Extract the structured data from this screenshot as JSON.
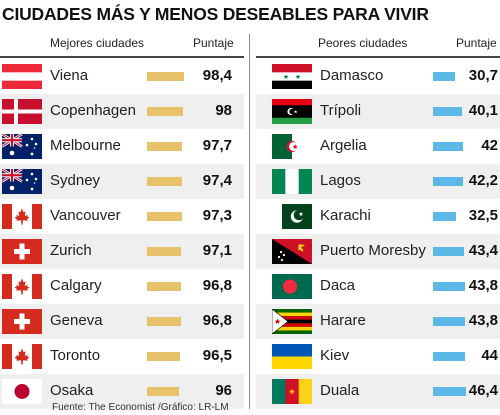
{
  "title": "CIUDADES MÁS Y MENOS DESEABLES PARA VIVIR",
  "source": "Fuente: The Economist /Gráfico: LR-LM",
  "colors": {
    "best_bar": "#e8c26b",
    "worst_bar": "#5cb8e6"
  },
  "chart_data": [
    {
      "type": "bar",
      "header": "Mejores ciudades",
      "value_header": "Puntaje",
      "categories": [
        "Viena",
        "Copenhagen",
        "Melbourne",
        "Sydney",
        "Vancouver",
        "Zurich",
        "Calgary",
        "Geneva",
        "Toronto",
        "Osaka"
      ],
      "values": [
        98.4,
        98,
        97.7,
        97.4,
        97.3,
        97.1,
        96.8,
        96.8,
        96.5,
        96
      ],
      "value_labels": [
        "98,4",
        "98",
        "97,7",
        "97,4",
        "97,3",
        "97,1",
        "96,8",
        "96,8",
        "96,5",
        "96"
      ],
      "flags": [
        "austria-flag",
        "denmark-flag",
        "australia-flag",
        "australia-flag",
        "canada-flag",
        "switzerland-flag",
        "canada-flag",
        "switzerland-flag",
        "canada-flag",
        "japan-flag"
      ]
    },
    {
      "type": "bar",
      "header": "Peores ciudades",
      "value_header": "Puntaje",
      "categories": [
        "Damasco",
        "Trípoli",
        "Argelia",
        "Lagos",
        "Karachi",
        "Puerto Moresby",
        "Daca",
        "Harare",
        "Kiev",
        "Duala"
      ],
      "values": [
        30.7,
        40.1,
        42,
        42.2,
        32.5,
        43.4,
        43.8,
        43.8,
        44,
        46.4
      ],
      "value_labels": [
        "30,7",
        "40,1",
        "42",
        "42,2",
        "32,5",
        "43,4",
        "43,8",
        "43,8",
        "44",
        "46,4"
      ],
      "flags": [
        "syria-flag",
        "libya-flag",
        "algeria-flag",
        "nigeria-flag",
        "pakistan-flag",
        "papua-new-guinea-flag",
        "bangladesh-flag",
        "zimbabwe-flag",
        "ukraine-flag",
        "cameroon-flag"
      ]
    }
  ]
}
